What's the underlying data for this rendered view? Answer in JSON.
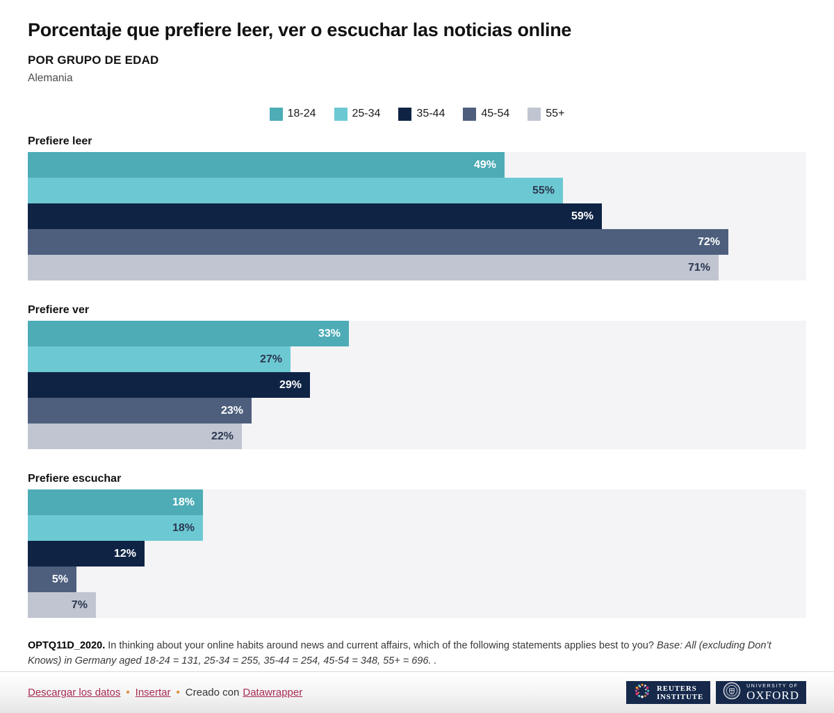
{
  "chart_data": {
    "type": "bar",
    "orientation": "horizontal",
    "title": "Porcentaje que prefiere leer, ver o escuchar las noticias online",
    "subtitle": "POR GRUPO DE EDAD",
    "note": "Alemania",
    "unit": "%",
    "xmax": 80,
    "grid": false,
    "legend_position": "top-center",
    "track_color": "#f4f4f6",
    "age_groups": [
      {
        "label": "18-24",
        "color": "#4dacb6",
        "value_label_color": "#ffffff"
      },
      {
        "label": "25-34",
        "color": "#6cc9d3",
        "value_label_color": "#2b3850"
      },
      {
        "label": "35-44",
        "color": "#0f2445",
        "value_label_color": "#ffffff"
      },
      {
        "label": "45-54",
        "color": "#4e5f7d",
        "value_label_color": "#ffffff"
      },
      {
        "label": "55+",
        "color": "#c0c5d1",
        "value_label_color": "#2b3850"
      }
    ],
    "groups": [
      {
        "title": "Prefiere leer",
        "values": [
          49,
          55,
          59,
          72,
          71
        ]
      },
      {
        "title": "Prefiere ver",
        "values": [
          33,
          27,
          29,
          23,
          22
        ]
      },
      {
        "title": "Prefiere escuchar",
        "values": [
          18,
          18,
          12,
          5,
          7
        ]
      }
    ]
  },
  "footnote": {
    "code": "OPTQ11D_2020.",
    "question": "In thinking about your online habits around news and current affairs, which of the following statements applies best to you?",
    "base": "Base: All (excluding Don’t Knows) in Germany aged 18-24 = 131, 25-34 = 255, 35-44 = 254, 45-54 = 348, 55+ = 696. ."
  },
  "footer": {
    "link_download": "Descargar los datos",
    "link_embed": "Insertar",
    "created_prefix": "Creado con",
    "created_link": "Datawrapper",
    "separator": "•"
  },
  "logos": {
    "reuters_line1": "REUTERS",
    "reuters_line2": "INSTITUTE",
    "oxford_line1": "UNIVERSITY OF",
    "oxford_line2": "OXFORD"
  },
  "colors": {
    "link": "#a82c52",
    "link_separator": "#d9913f",
    "logo_background": "#16294b",
    "title_text": "#111111"
  }
}
